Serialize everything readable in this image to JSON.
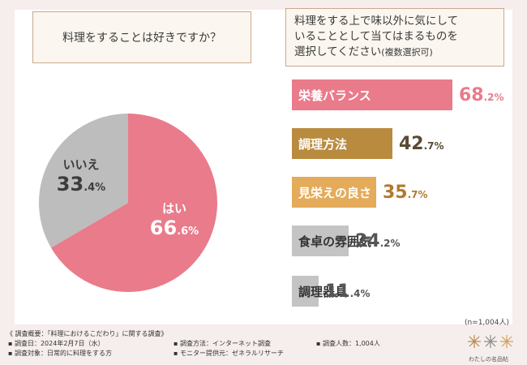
{
  "colors": {
    "yes": "#e97b8b",
    "no": "#bdbdbd",
    "b1": "#e97b8b",
    "b2": "#b98b3f",
    "b3": "#e4ab5b",
    "b4": "#c4c4c4",
    "b5": "#c4c4c4"
  },
  "left": {
    "question": "料理をすることは好きですか？"
  },
  "right": {
    "question_line1": "料理をする上で味以外に気にして",
    "question_line2": "いることとして当てはまるものを",
    "question_line3": "選択してください",
    "question_sub": "(複数選択可)"
  },
  "chart_data": [
    {
      "type": "pie",
      "title": "料理をすることは好きですか？",
      "slices": [
        {
          "label": "はい",
          "value": 66.6,
          "display_main": "66",
          "display_dec": ".6%"
        },
        {
          "label": "いいえ",
          "value": 33.4,
          "display_main": "33",
          "display_dec": ".4%"
        }
      ]
    },
    {
      "type": "bar",
      "orientation": "horizontal",
      "title": "料理をする上で味以外に気にしていることとして当てはまるものを選択してください(複数選択可)",
      "categories": [
        "栄養バランス",
        "調理方法",
        "見栄えの良さ",
        "食卓の雰囲気",
        "調理器具"
      ],
      "values": [
        68.2,
        42.7,
        35.7,
        24.2,
        11.4
      ],
      "display_main": [
        "68",
        "42",
        "35",
        "24",
        "11"
      ],
      "display_dec": [
        ".2%",
        ".7%",
        ".7%",
        ".2%",
        ".4%"
      ],
      "xlim": [
        0,
        100
      ]
    }
  ],
  "note": "(n=1,004人)",
  "footer": {
    "title": "《 調査概要：「料理におけるこだわり」に関する調査》",
    "date": "▪ 調査日：2024年2月7日（水）",
    "target": "▪ 調査対象：日常的に料理をする方",
    "method": "▪ 調査方法：インターネット調査",
    "provider": "▪ モニター提供元：ゼネラルリサーチ",
    "count": "▪ 調査人数：1,004人"
  },
  "logo_text": "わたしの名品帖"
}
